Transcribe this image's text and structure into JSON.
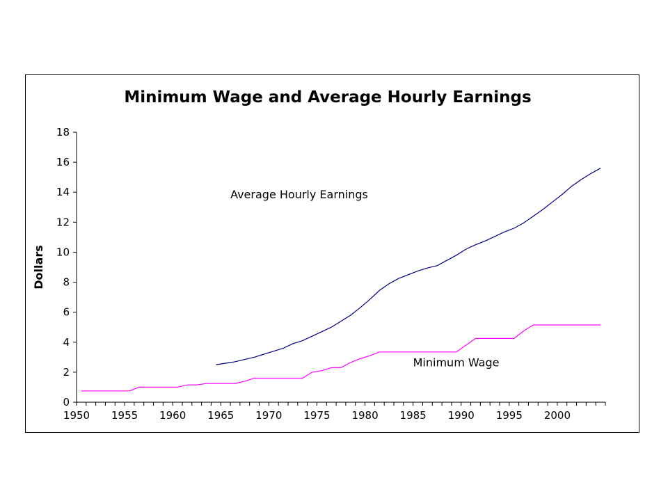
{
  "chart_data": {
    "type": "line",
    "title": "Minimum Wage and Average Hourly Earnings",
    "xlabel": "",
    "ylabel": "Dollars",
    "xlim": [
      1950,
      2005
    ],
    "ylim": [
      0,
      18
    ],
    "x_ticks": [
      "1950",
      "1955",
      "1960",
      "1965",
      "1970",
      "1975",
      "1980",
      "1985",
      "1990",
      "1995",
      "2000"
    ],
    "y_ticks": [
      "0",
      "2",
      "4",
      "6",
      "8",
      "10",
      "12",
      "14",
      "16",
      "18"
    ],
    "grid": false,
    "legend": "none",
    "series": [
      {
        "name": "Average Hourly Earnings",
        "color": "#000080",
        "step": false,
        "points": [
          [
            1964.5,
            2.5
          ],
          [
            1965.5,
            2.6
          ],
          [
            1966.5,
            2.7
          ],
          [
            1967.5,
            2.85
          ],
          [
            1968.5,
            3.0
          ],
          [
            1969.5,
            3.2
          ],
          [
            1970.5,
            3.4
          ],
          [
            1971.5,
            3.6
          ],
          [
            1972.5,
            3.9
          ],
          [
            1973.5,
            4.1
          ],
          [
            1974.5,
            4.4
          ],
          [
            1975.5,
            4.7
          ],
          [
            1976.5,
            5.0
          ],
          [
            1977.5,
            5.4
          ],
          [
            1978.5,
            5.8
          ],
          [
            1979.5,
            6.3
          ],
          [
            1980.5,
            6.85
          ],
          [
            1981.5,
            7.45
          ],
          [
            1982.5,
            7.9
          ],
          [
            1983.5,
            8.25
          ],
          [
            1984.5,
            8.5
          ],
          [
            1985.5,
            8.75
          ],
          [
            1986.5,
            8.95
          ],
          [
            1987.5,
            9.1
          ],
          [
            1988.5,
            9.45
          ],
          [
            1989.5,
            9.8
          ],
          [
            1990.5,
            10.2
          ],
          [
            1991.5,
            10.5
          ],
          [
            1992.5,
            10.75
          ],
          [
            1993.5,
            11.05
          ],
          [
            1994.5,
            11.35
          ],
          [
            1995.5,
            11.6
          ],
          [
            1996.5,
            11.95
          ],
          [
            1997.5,
            12.4
          ],
          [
            1998.5,
            12.85
          ],
          [
            1999.5,
            13.35
          ],
          [
            2000.5,
            13.85
          ],
          [
            2001.5,
            14.4
          ],
          [
            2002.5,
            14.85
          ],
          [
            2003.5,
            15.25
          ],
          [
            2004.5,
            15.6
          ]
        ]
      },
      {
        "name": "Minimum Wage",
        "color": "#ff00ff",
        "step": true,
        "points": [
          [
            1950.5,
            0.75
          ],
          [
            1955.5,
            0.75
          ],
          [
            1956.5,
            1.0
          ],
          [
            1960.5,
            1.0
          ],
          [
            1961.5,
            1.15
          ],
          [
            1962.5,
            1.15
          ],
          [
            1963.5,
            1.25
          ],
          [
            1966.5,
            1.25
          ],
          [
            1967.5,
            1.4
          ],
          [
            1968.5,
            1.6
          ],
          [
            1973.5,
            1.6
          ],
          [
            1974.5,
            2.0
          ],
          [
            1975.5,
            2.1
          ],
          [
            1976.5,
            2.3
          ],
          [
            1977.5,
            2.3
          ],
          [
            1978.5,
            2.65
          ],
          [
            1979.5,
            2.9
          ],
          [
            1980.5,
            3.1
          ],
          [
            1981.5,
            3.35
          ],
          [
            1989.5,
            3.35
          ],
          [
            1990.5,
            3.8
          ],
          [
            1991.5,
            4.25
          ],
          [
            1995.5,
            4.25
          ],
          [
            1996.5,
            4.75
          ],
          [
            1997.5,
            5.15
          ],
          [
            2004.5,
            5.15
          ]
        ]
      }
    ],
    "annotations": [
      {
        "text": "Average Hourly Earnings",
        "x": 1966.0,
        "y": 13.6
      },
      {
        "text": "Minimum Wage",
        "x": 1985.0,
        "y": 2.4
      }
    ]
  }
}
